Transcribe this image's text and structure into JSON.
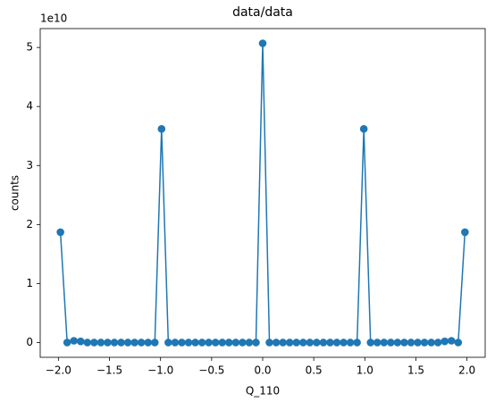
{
  "chart_data": {
    "type": "line",
    "title": "data/data",
    "xlabel": "Q_110",
    "ylabel": "counts",
    "y_offset_label": "1e10",
    "x": [
      -1.98,
      -1.914,
      -1.848,
      -1.782,
      -1.716,
      -1.65,
      -1.584,
      -1.518,
      -1.452,
      -1.386,
      -1.32,
      -1.254,
      -1.188,
      -1.122,
      -1.056,
      -0.99,
      -0.924,
      -0.858,
      -0.792,
      -0.726,
      -0.66,
      -0.594,
      -0.528,
      -0.462,
      -0.396,
      -0.33,
      -0.264,
      -0.198,
      -0.132,
      -0.066,
      0,
      0.066,
      0.132,
      0.198,
      0.264,
      0.33,
      0.396,
      0.462,
      0.528,
      0.594,
      0.66,
      0.726,
      0.792,
      0.858,
      0.924,
      0.99,
      1.056,
      1.122,
      1.188,
      1.254,
      1.32,
      1.386,
      1.452,
      1.518,
      1.584,
      1.65,
      1.716,
      1.782,
      1.848,
      1.914,
      1.98
    ],
    "series": [
      {
        "color": "#1f77b4",
        "values": [
          1.87,
          0,
          0.03,
          0.02,
          0,
          0,
          0,
          0,
          0,
          0,
          0,
          0,
          0,
          0,
          0,
          3.62,
          0,
          0,
          0,
          0,
          0,
          0,
          0,
          0,
          0,
          0,
          0,
          0,
          0,
          0,
          5.07,
          0,
          0,
          0,
          0,
          0,
          0,
          0,
          0,
          0,
          0,
          0,
          0,
          0,
          0,
          3.62,
          0,
          0,
          0,
          0,
          0,
          0,
          0,
          0,
          0,
          0,
          0,
          0.02,
          0.03,
          0,
          1.87
        ]
      }
    ],
    "xlim": [
      -2.178,
      2.178
    ],
    "ylim": [
      -0.25,
      5.32
    ],
    "xticks": [
      {
        "value": -2,
        "label": "−2.0"
      },
      {
        "value": -1.5,
        "label": "−1.5"
      },
      {
        "value": -1,
        "label": "−1.0"
      },
      {
        "value": -0.5,
        "label": "−0.5"
      },
      {
        "value": 0,
        "label": "0.0"
      },
      {
        "value": 0.5,
        "label": "0.5"
      },
      {
        "value": 1,
        "label": "1.0"
      },
      {
        "value": 1.5,
        "label": "1.5"
      },
      {
        "value": 2,
        "label": "2.0"
      }
    ],
    "yticks": [
      0,
      1,
      2,
      3,
      4,
      5
    ]
  }
}
